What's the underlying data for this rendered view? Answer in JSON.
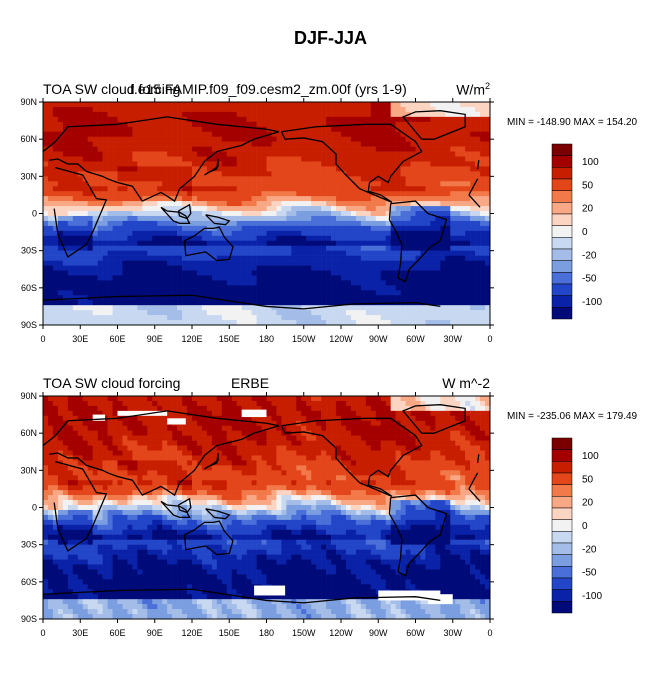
{
  "title": "DJF-JJA",
  "colorbar_levels": [
    "100",
    "50",
    "20",
    "0",
    "-20",
    "-50",
    "-100"
  ],
  "colorbar_colors": [
    "#7a0000",
    "#a40000",
    "#c81e00",
    "#e4461c",
    "#f27a4a",
    "#f8a885",
    "#fbd4c2",
    "#f2f2f2",
    "#c8d8f0",
    "#a3bde8",
    "#7a9ee0",
    "#4b6fd8",
    "#2346c8",
    "#0a22a8",
    "#000a78"
  ],
  "chart_data": [
    {
      "type": "heatmap",
      "title_left": "TOA SW cloud forcing",
      "title_center": "f.e15.FAMIP.f09_f09.cesm2_zm.00f (yrs 1-9)",
      "title_right_base": "W/m",
      "title_right_sup": "2",
      "min_label": "MIN = -148.90",
      "max_label": "MAX = 154.20",
      "min": -148.9,
      "max": 154.2,
      "xticks": [
        "0",
        "30E",
        "60E",
        "90E",
        "120E",
        "150E",
        "180",
        "150W",
        "120W",
        "90W",
        "60W",
        "30W",
        "0"
      ],
      "yticks": [
        "90N",
        "60N",
        "30N",
        "0",
        "30S",
        "60S",
        "90S"
      ],
      "units": "W/m2"
    },
    {
      "type": "heatmap",
      "title_left": "TOA SW cloud forcing",
      "title_center": "ERBE",
      "title_right_base": "W m^-2",
      "title_right_sup": "",
      "min_label": "MIN = -235.06",
      "max_label": "MAX = 179.49",
      "min": -235.06,
      "max": 179.49,
      "xticks": [
        "0",
        "30E",
        "60E",
        "90E",
        "120E",
        "150E",
        "180",
        "150W",
        "120W",
        "90W",
        "60W",
        "30W",
        "0"
      ],
      "yticks": [
        "90N",
        "60N",
        "30N",
        "0",
        "30S",
        "60S",
        "90S"
      ],
      "units": "W m^-2"
    }
  ]
}
